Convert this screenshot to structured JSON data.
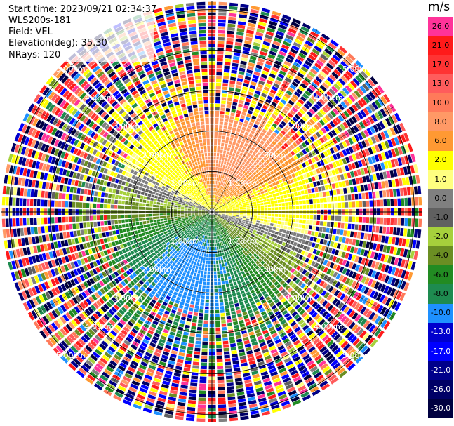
{
  "info": {
    "start_time": "Start time: 2023/09/21 02:34:37",
    "site": "WLS200s-181",
    "field": "Field: VEL",
    "elevation": "Elevation(deg): 35.30",
    "nrays": "NRays: 120"
  },
  "colorbar": {
    "unit": "m/s",
    "levels": [
      {
        "label": "26.0",
        "color": "#ff3399"
      },
      {
        "label": "21.0",
        "color": "#ff1a1a"
      },
      {
        "label": "17.0",
        "color": "#ff3333"
      },
      {
        "label": "13.0",
        "color": "#ff5c5c"
      },
      {
        "label": "10.0",
        "color": "#ff7a5a"
      },
      {
        "label": "8.0",
        "color": "#ff9966"
      },
      {
        "label": "6.0",
        "color": "#ff9933"
      },
      {
        "label": "2.0",
        "color": "#ffff00"
      },
      {
        "label": "1.0",
        "color": "#ffff80"
      },
      {
        "label": "0.0",
        "color": "#808080"
      },
      {
        "label": "-1.0",
        "color": "#606060"
      },
      {
        "label": "-2.0",
        "color": "#a6d03c"
      },
      {
        "label": "-4.0",
        "color": "#6b8e23"
      },
      {
        "label": "-6.0",
        "color": "#228b22"
      },
      {
        "label": "-8.0",
        "color": "#1e8b50"
      },
      {
        "label": "-10.0",
        "color": "#1e90ff"
      },
      {
        "label": "-13.0",
        "color": "#0000cd"
      },
      {
        "label": "-17.0",
        "color": "#0000ff"
      },
      {
        "label": "-21.0",
        "color": "#00008b"
      },
      {
        "label": "-26.0",
        "color": "#000066"
      },
      {
        "label": "-30.0",
        "color": "#000040"
      }
    ]
  },
  "range_labels": [
    "1.00km",
    "2.00km",
    "3.00km",
    "4.00km",
    "5.00km"
  ],
  "chart_data": {
    "type": "heatmap",
    "projection": "polar PPI",
    "field": "VEL",
    "unit": "m/s",
    "rays": 120,
    "range_rings_km": [
      1,
      2,
      3,
      4,
      5
    ],
    "max_range_km": 5.2,
    "value_range": [
      -30,
      26
    ],
    "pattern": {
      "positive_sector_deg": [
        -80,
        110
      ],
      "negative_sector_deg": [
        110,
        280
      ],
      "peak_positive": 10,
      "peak_negative": -10,
      "clean_range_km": 2.6
    }
  }
}
